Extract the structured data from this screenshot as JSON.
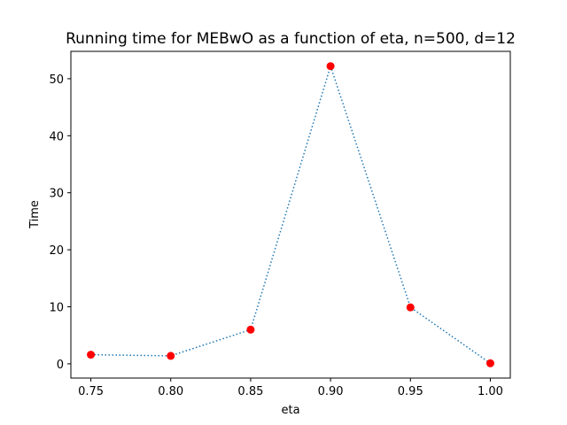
{
  "chart_data": {
    "type": "line",
    "title": "Running time for MEBwO as a function of eta, n=500, d=12",
    "xlabel": "eta",
    "ylabel": "Time",
    "x": [
      0.75,
      0.8,
      0.85,
      0.9,
      0.95,
      1.0
    ],
    "series": [
      {
        "values": [
          1.6,
          1.4,
          6.0,
          52.2,
          9.9,
          0.1
        ]
      }
    ],
    "xlim": [
      0.7375,
      1.0125
    ],
    "ylim": [
      -2.5,
      54.8
    ],
    "xticks": [
      "0.75",
      "0.80",
      "0.85",
      "0.90",
      "0.95",
      "1.00"
    ],
    "xtick_values": [
      0.75,
      0.8,
      0.85,
      0.9,
      0.95,
      1.0
    ],
    "yticks": [
      "0",
      "10",
      "20",
      "30",
      "40",
      "50"
    ],
    "ytick_values": [
      0,
      10,
      20,
      30,
      40,
      50
    ],
    "line_color": "#1f77b4",
    "line_style": "dotted",
    "marker_color": "#ff0000",
    "grid": false,
    "legend": "none"
  }
}
